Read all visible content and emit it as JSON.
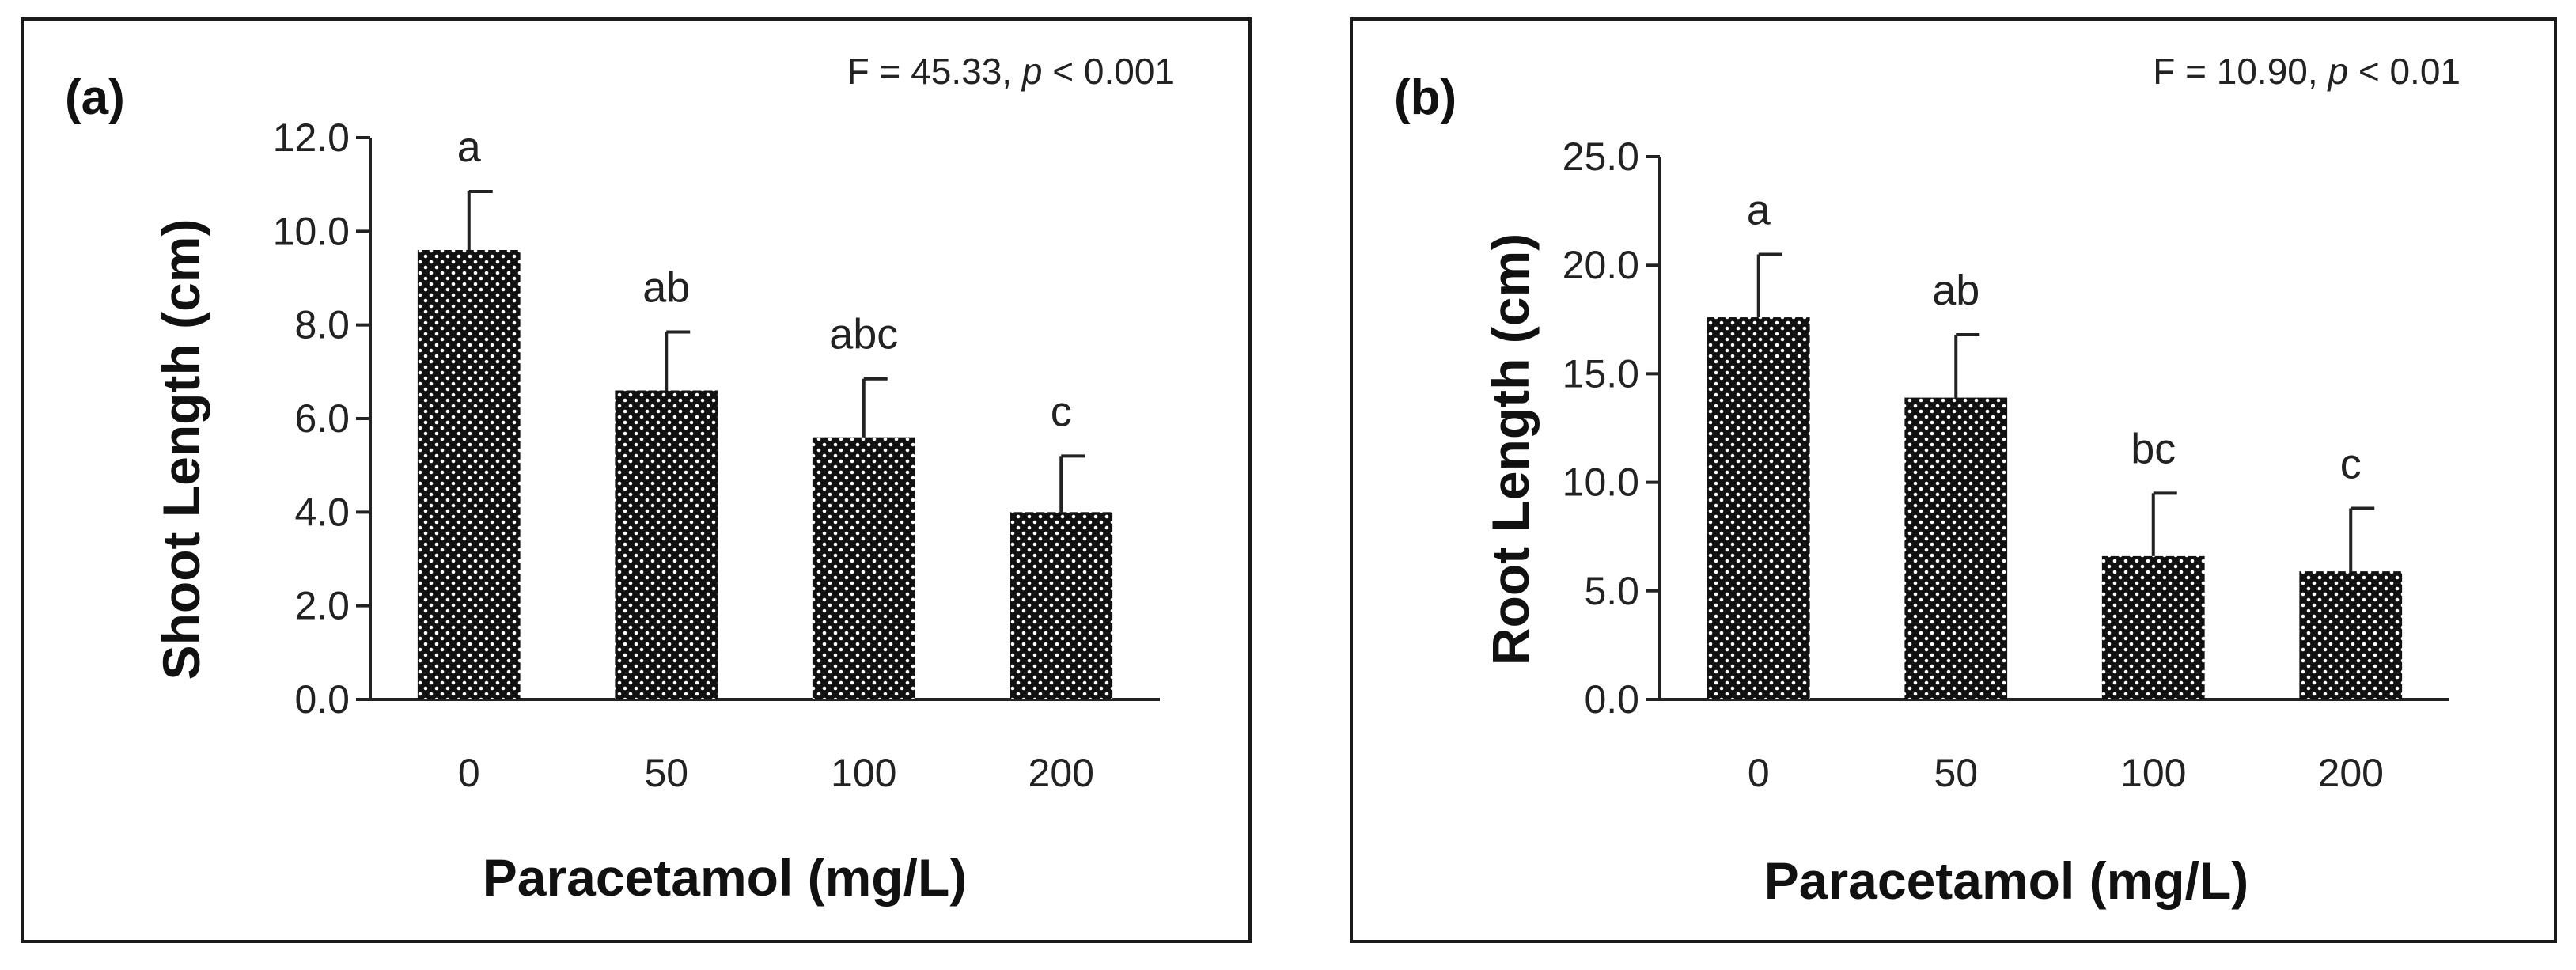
{
  "chart_data": [
    {
      "type": "bar",
      "panel_label": "(a)",
      "stat_prefix": "F =  45.33,",
      "stat_p": "p",
      "stat_suffix": "< 0.001",
      "categories": [
        "0",
        "50",
        "100",
        "200"
      ],
      "values": [
        9.6,
        6.6,
        5.6,
        4.0
      ],
      "errors": [
        1.25,
        1.25,
        1.25,
        1.2
      ],
      "letters": [
        "a",
        "ab",
        "abc",
        "c"
      ],
      "ylim": [
        0,
        12
      ],
      "yticks": [
        "0.0",
        "2.0",
        "4.0",
        "6.0",
        "8.0",
        "10.0",
        "12.0"
      ],
      "ylabel": "Shoot Length (cm)",
      "xlabel": "Paracetamol (mg/L)"
    },
    {
      "type": "bar",
      "panel_label": "(b)",
      "stat_prefix": "F = 10.90,",
      "stat_p": "p",
      "stat_suffix": "< 0.01",
      "categories": [
        "0",
        "50",
        "100",
        "200"
      ],
      "values": [
        17.6,
        13.9,
        6.6,
        5.9
      ],
      "errors": [
        2.9,
        2.9,
        2.9,
        2.9
      ],
      "letters": [
        "a",
        "ab",
        "bc",
        "c"
      ],
      "ylim": [
        0,
        25
      ],
      "yticks": [
        "0.0",
        "5.0",
        "10.0",
        "15.0",
        "20.0",
        "25.0"
      ],
      "ylabel": "Root Length (cm)",
      "xlabel": "Paracetamol (mg/L)"
    }
  ],
  "colors": {
    "bar": "#111111",
    "dot": "#ffffff",
    "axis": "#222222"
  }
}
